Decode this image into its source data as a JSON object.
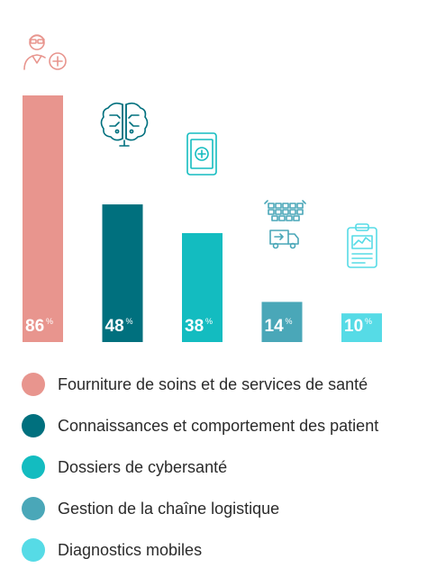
{
  "chart_data": {
    "type": "bar",
    "categories": [
      "Fourniture de soins et de services de santé",
      "Connaissances et comportement des patient",
      "Dossiers de cybersanté",
      "Gestion de la chaîne logistique",
      "Diagnostics mobiles"
    ],
    "values": [
      86,
      48,
      38,
      14,
      10
    ],
    "value_suffix": "%",
    "colors": [
      "#e8958e",
      "#00707e",
      "#13bcc0",
      "#4aa7b8",
      "#56dbe6"
    ],
    "icons": [
      "doctor-medical-icon",
      "brain-circuit-icon",
      "tablet-add-icon",
      "warehouse-truck-icon",
      "clipboard-chart-icon"
    ],
    "ylim": [
      0,
      100
    ],
    "grid": false,
    "legend_position": "bottom"
  }
}
